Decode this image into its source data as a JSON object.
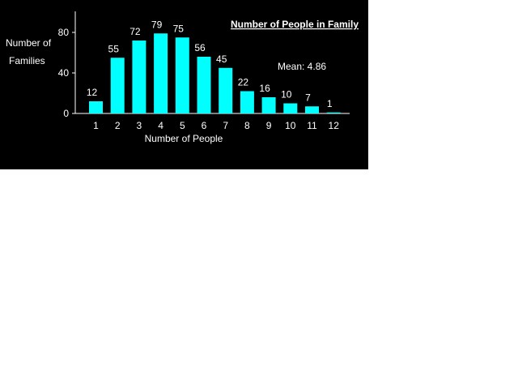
{
  "colors": {
    "background": "#000000",
    "bar": "#00ffff",
    "text": "#ffffff",
    "axis": "#ffffff"
  },
  "chart_data": {
    "type": "bar",
    "title": "Number of People in Family",
    "xlabel": "Number of People",
    "ylabel_line1": "Number of",
    "ylabel_line2": "Families",
    "categories": [
      "1",
      "2",
      "3",
      "4",
      "5",
      "6",
      "7",
      "8",
      "9",
      "10",
      "11",
      "12"
    ],
    "values": [
      12,
      55,
      72,
      79,
      75,
      56,
      45,
      22,
      16,
      10,
      7,
      1
    ],
    "yticks": [
      "0",
      "40",
      "80"
    ],
    "ytick_values": [
      0,
      40,
      80
    ],
    "ylim": [
      0,
      100
    ],
    "annotation": "Mean: 4.86",
    "grid": false,
    "legend": "none"
  }
}
